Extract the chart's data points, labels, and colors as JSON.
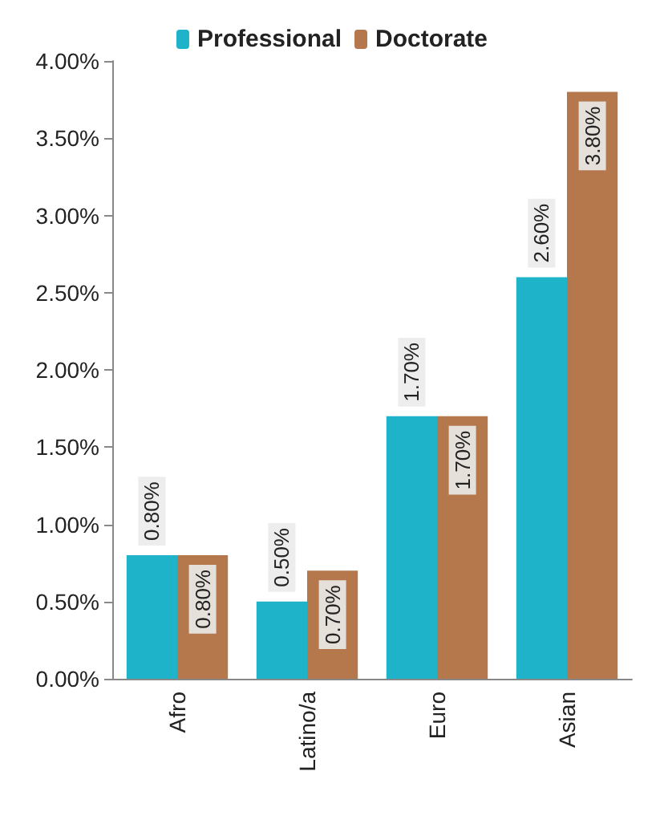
{
  "chart_data": {
    "type": "bar",
    "categories": [
      "Afro",
      "Latino/a",
      "Euro",
      "Asian"
    ],
    "series": [
      {
        "name": "Professional",
        "color": "#1fb3c9",
        "values": [
          0.8,
          0.5,
          1.7,
          2.6
        ],
        "value_labels": [
          "0.80%",
          "0.50%",
          "1.70%",
          "2.60%"
        ]
      },
      {
        "name": "Doctorate",
        "color": "#b5784c",
        "values": [
          0.8,
          0.7,
          1.7,
          3.8
        ],
        "value_labels": [
          "0.80%",
          "0.70%",
          "1.70%",
          "3.80%"
        ]
      }
    ],
    "ylim": [
      0,
      4
    ],
    "yticks": [
      {
        "value": 0,
        "label": "0.00%"
      },
      {
        "value": 0.5,
        "label": "0.50%"
      },
      {
        "value": 1,
        "label": "1.00%"
      },
      {
        "value": 1.5,
        "label": "1.50%"
      },
      {
        "value": 2,
        "label": "2.00%"
      },
      {
        "value": 2.5,
        "label": "2.50%"
      },
      {
        "value": 3,
        "label": "3.00%"
      },
      {
        "value": 3.5,
        "label": "3.50%"
      },
      {
        "value": 4,
        "label": "4.00%"
      }
    ],
    "grid": false,
    "legend": "top"
  }
}
